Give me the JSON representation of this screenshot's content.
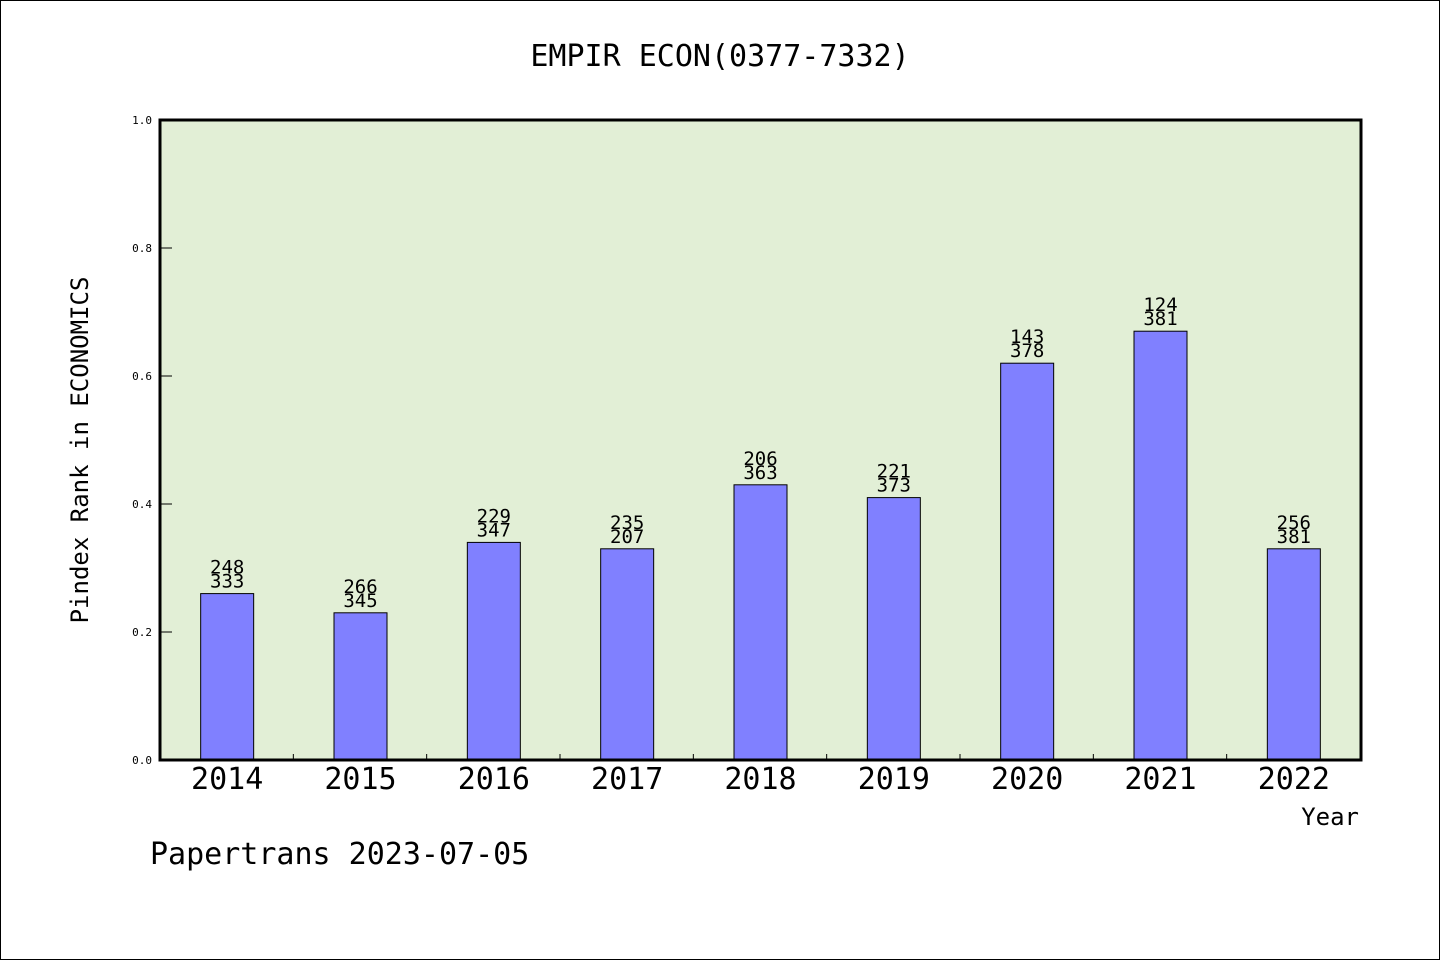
{
  "chart_data": {
    "type": "bar",
    "title": "EMPIR ECON(0377-7332)",
    "xlabel": "Year",
    "ylabel": "Pindex Rank in ECONOMICS",
    "ylim": [
      0,
      1.0
    ],
    "yticks": [
      "0.0",
      "0.2",
      "0.4",
      "0.6",
      "0.8",
      "1.0"
    ],
    "categories": [
      "2014",
      "2015",
      "2016",
      "2017",
      "2018",
      "2019",
      "2020",
      "2021",
      "2022"
    ],
    "values": [
      0.26,
      0.23,
      0.34,
      0.33,
      0.43,
      0.41,
      0.62,
      0.67,
      0.33
    ],
    "labels_top": [
      "248",
      "266",
      "229",
      "235",
      "206",
      "221",
      "143",
      "124",
      "256"
    ],
    "labels_bottom": [
      "333",
      "345",
      "347",
      "207",
      "363",
      "373",
      "378",
      "381",
      "381"
    ],
    "grid": false,
    "plot_background": "#e2efd6",
    "bar_color": "#8080ff"
  },
  "footer": "Papertrans 2023-07-05"
}
